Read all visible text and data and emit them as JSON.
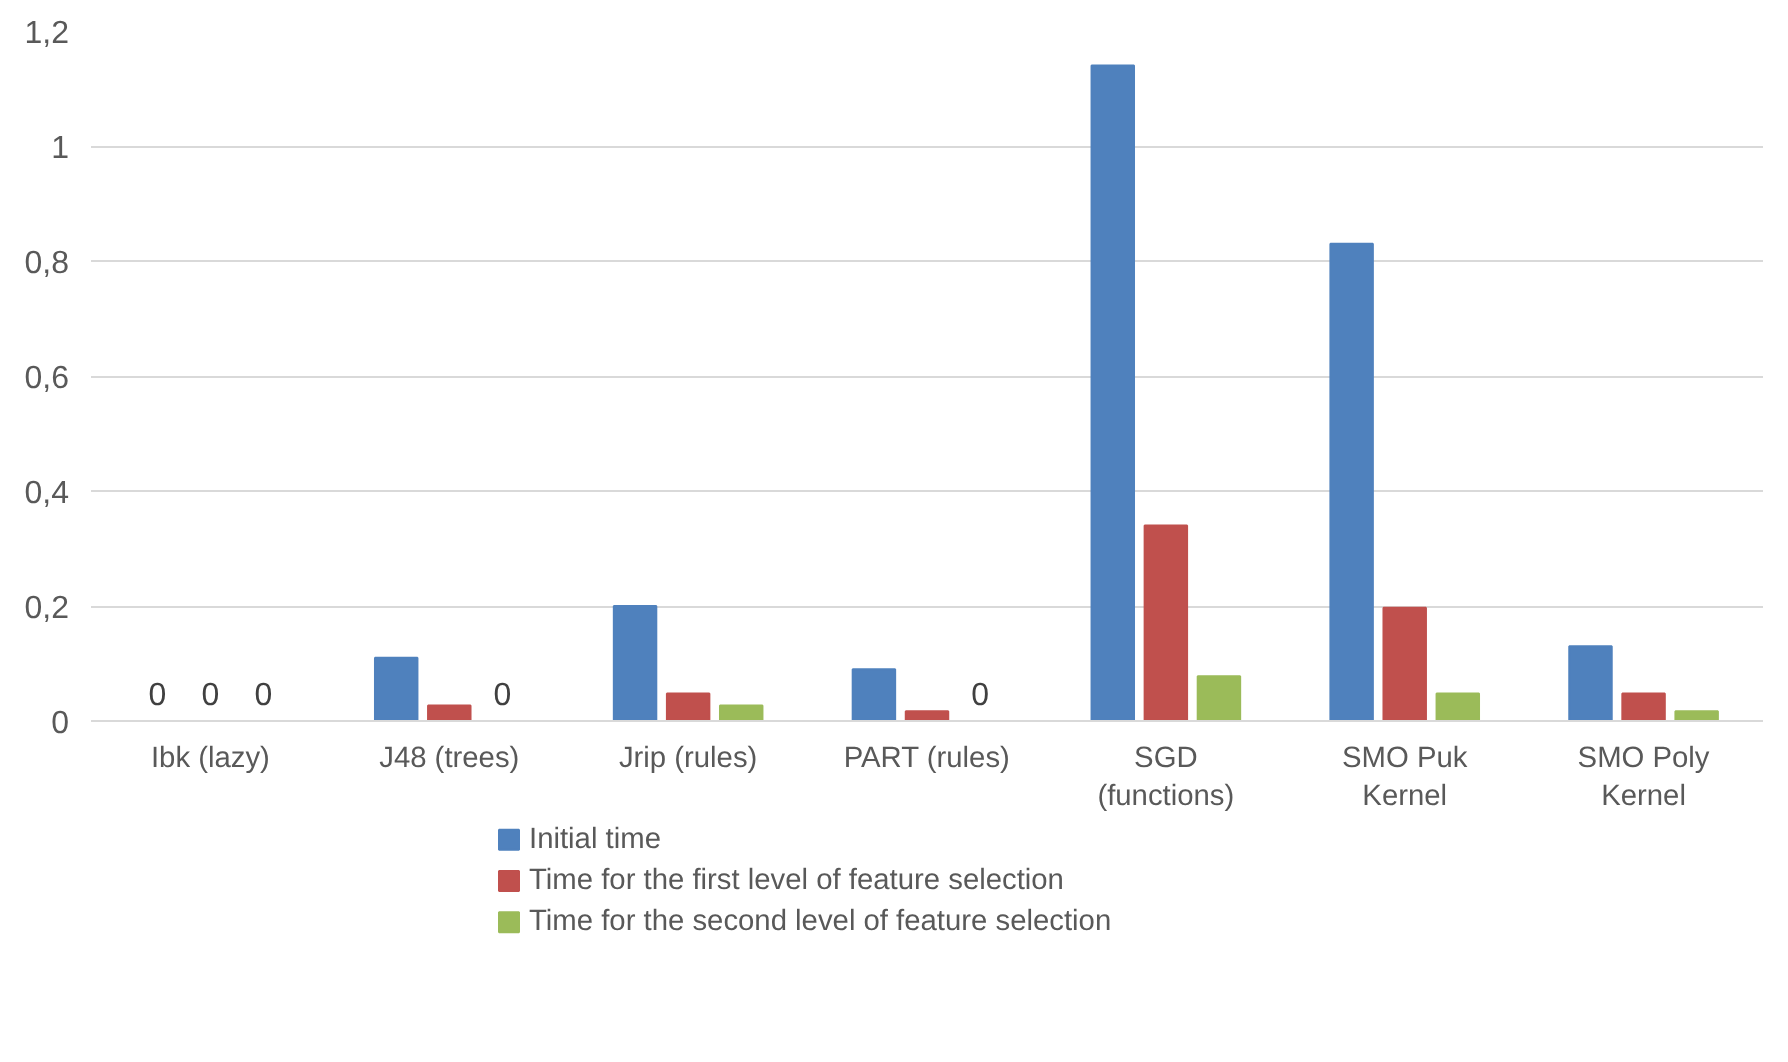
{
  "chart_data": {
    "type": "bar",
    "categories": [
      "Ibk (lazy)",
      "J48 (trees)",
      "Jrip (rules)",
      "PART (rules)",
      "SGD (functions)",
      "SMO Puk Kernel",
      "SMO Poly Kernel"
    ],
    "series": [
      {
        "name": "Initial time",
        "color": "#4f81bd",
        "values": [
          0,
          0.11,
          0.2,
          0.09,
          1.14,
          0.83,
          0.13
        ],
        "value_labels": [
          "0",
          null,
          null,
          null,
          null,
          null,
          null
        ]
      },
      {
        "name": "Time for the first level of feature selection",
        "color": "#c0504d",
        "values": [
          0,
          0.027,
          0.048,
          0.017,
          0.34,
          0.197,
          0.048
        ],
        "value_labels": [
          "0",
          null,
          null,
          null,
          null,
          null,
          null
        ]
      },
      {
        "name": "Time for the second level of feature selection",
        "color": "#9bbb59",
        "values": [
          0,
          0,
          0.027,
          0,
          0.078,
          0.048,
          0.017
        ],
        "value_labels": [
          "0",
          "0",
          null,
          "0",
          null,
          null,
          null
        ]
      }
    ],
    "ylim": [
      0,
      1.2
    ],
    "yticks": [
      0,
      {
        "value": 0.2,
        "label": "0,2"
      },
      {
        "value": 0.4,
        "label": "0,4"
      },
      {
        "value": 0.6,
        "label": "0,6"
      },
      {
        "value": 0.8,
        "label": "0,8"
      },
      1,
      {
        "value": 1.2,
        "label": "1,2"
      }
    ],
    "grid": "y",
    "legend": "bottom"
  }
}
